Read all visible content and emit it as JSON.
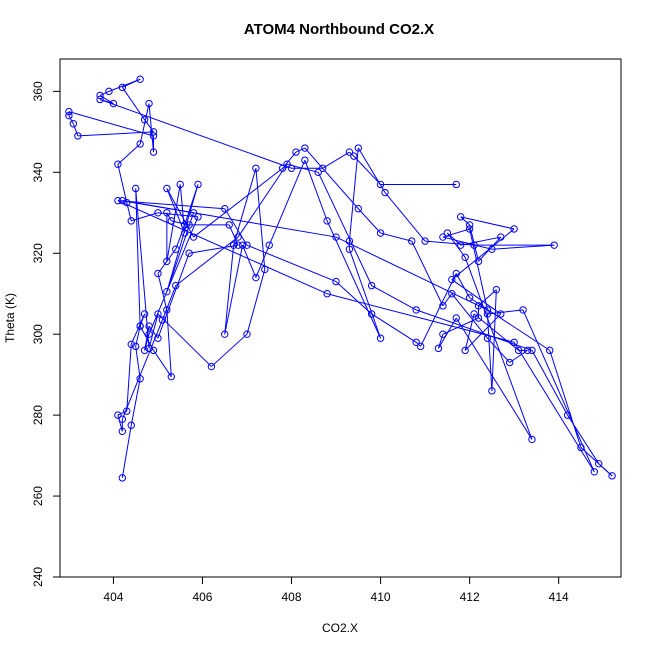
{
  "chart_data": {
    "type": "line",
    "title": "ATOM4 Northbound CO2.X",
    "xlabel": "CO2.X",
    "ylabel": "Theta (K)",
    "xlim": [
      402.8,
      415.4
    ],
    "ylim": [
      240,
      368
    ],
    "xticks": [
      404,
      406,
      408,
      410,
      412,
      414
    ],
    "yticks": [
      240,
      260,
      280,
      300,
      320,
      340,
      360
    ],
    "colors": {
      "series": "#0000ff",
      "axis": "#000000"
    },
    "series": [
      {
        "name": "",
        "marker": "open-circle",
        "points": [
          [
            404.2,
            264.5
          ],
          [
            404.4,
            277.5
          ],
          [
            404.6,
            289.0
          ],
          [
            404.5,
            297.0
          ],
          [
            404.6,
            302.0
          ],
          [
            404.9,
            296.0
          ],
          [
            405.3,
            289.5
          ],
          [
            405.2,
            306.0
          ],
          [
            405.0,
            315.0
          ],
          [
            405.4,
            321.0
          ],
          [
            405.6,
            327.0
          ],
          [
            405.9,
            337.0
          ],
          [
            405.2,
            310.5
          ],
          [
            405.8,
            330.0
          ],
          [
            404.2,
            333.0
          ],
          [
            409.0,
            324.0
          ],
          [
            412.4,
            306.0
          ],
          [
            412.0,
            326.0
          ],
          [
            411.4,
            324.0
          ],
          [
            412.5,
            321.0
          ],
          [
            413.9,
            322.0
          ],
          [
            412.1,
            322.0
          ],
          [
            411.0,
            323.0
          ],
          [
            410.1,
            335.0
          ],
          [
            409.5,
            346.0
          ],
          [
            409.3,
            323.0
          ],
          [
            409.3,
            321.0
          ],
          [
            410.0,
            299.0
          ],
          [
            408.8,
            328.0
          ],
          [
            408.3,
            343.0
          ],
          [
            407.5,
            322.0
          ],
          [
            407.2,
            314.0
          ],
          [
            406.9,
            322.0
          ],
          [
            406.5,
            300.0
          ],
          [
            406.7,
            322.0
          ],
          [
            407.2,
            341.0
          ],
          [
            407.4,
            316.0
          ],
          [
            407.0,
            300.0
          ],
          [
            406.2,
            292.0
          ],
          [
            405.0,
            305.0
          ],
          [
            404.8,
            296.5
          ],
          [
            404.5,
            336.0
          ],
          [
            404.6,
            302.0
          ],
          [
            404.7,
            305.0
          ],
          [
            404.4,
            297.5
          ],
          [
            404.3,
            281.0
          ],
          [
            404.1,
            280.0
          ],
          [
            404.2,
            276.0
          ],
          [
            404.2,
            279.0
          ],
          [
            405.1,
            303.5
          ],
          [
            405.4,
            312.0
          ],
          [
            406.8,
            324.0
          ],
          [
            407.9,
            342.0
          ],
          [
            408.6,
            340.0
          ],
          [
            409.8,
            312.0
          ],
          [
            410.8,
            306.0
          ],
          [
            413.4,
            296.0
          ],
          [
            414.2,
            280.0
          ],
          [
            414.9,
            268.0
          ],
          [
            415.2,
            265.0
          ],
          [
            414.5,
            272.0
          ],
          [
            413.8,
            296.0
          ],
          [
            412.0,
            309.0
          ],
          [
            411.7,
            315.0
          ],
          [
            410.9,
            297.0
          ],
          [
            410.8,
            298.0
          ],
          [
            409.8,
            305.0
          ],
          [
            409.0,
            313.0
          ],
          [
            407.0,
            322.0
          ],
          [
            406.5,
            331.0
          ],
          [
            404.1,
            333.0
          ],
          [
            408.8,
            310.0
          ],
          [
            413.0,
            298.0
          ],
          [
            414.8,
            266.0
          ],
          [
            413.2,
            306.0
          ],
          [
            412.4,
            305.0
          ],
          [
            412.5,
            286.0
          ],
          [
            412.6,
            311.0
          ],
          [
            412.2,
            307.0
          ],
          [
            412.2,
            304.0
          ],
          [
            411.4,
            300.0
          ],
          [
            411.3,
            296.5
          ],
          [
            411.7,
            304.0
          ],
          [
            413.4,
            274.0
          ],
          [
            411.9,
            319.0
          ],
          [
            411.5,
            325.0
          ],
          [
            411.8,
            322.0
          ],
          [
            412.7,
            324.0
          ],
          [
            412.2,
            318.0
          ],
          [
            412.0,
            327.0
          ],
          [
            411.8,
            329.0
          ],
          [
            413.0,
            326.0
          ],
          [
            411.6,
            313.5
          ],
          [
            412.7,
            305.0
          ],
          [
            411.9,
            296.0
          ],
          [
            412.1,
            305.0
          ],
          [
            413.1,
            296.0
          ],
          [
            413.3,
            296.0
          ],
          [
            412.9,
            293.0
          ],
          [
            412.4,
            299.0
          ],
          [
            411.6,
            310.0
          ],
          [
            411.4,
            307.0
          ],
          [
            410.7,
            323.0
          ],
          [
            410.0,
            325.0
          ],
          [
            409.5,
            331.0
          ],
          [
            408.3,
            346.0
          ],
          [
            408.1,
            345.0
          ],
          [
            407.8,
            341.0
          ],
          [
            405.8,
            324.0
          ],
          [
            405.2,
            336.0
          ],
          [
            405.6,
            325.0
          ],
          [
            405.5,
            337.0
          ],
          [
            405.2,
            318.0
          ],
          [
            405.2,
            330.0
          ],
          [
            405.3,
            328.0
          ],
          [
            405.7,
            327.0
          ],
          [
            406.6,
            327.0
          ],
          [
            406.8,
            322.0
          ],
          [
            405.7,
            320.0
          ],
          [
            405.0,
            299.0
          ],
          [
            404.8,
            302.0
          ],
          [
            404.7,
            296.0
          ],
          [
            404.8,
            300.0
          ],
          [
            405.9,
            329.0
          ],
          [
            405.0,
            330.0
          ],
          [
            404.4,
            328.0
          ],
          [
            404.3,
            332.5
          ],
          [
            404.1,
            342.0
          ],
          [
            404.6,
            347.0
          ],
          [
            404.8,
            357.0
          ],
          [
            404.9,
            345.0
          ],
          [
            404.9,
            349.0
          ],
          [
            403.0,
            355.0
          ],
          [
            403.0,
            354.0
          ],
          [
            403.1,
            352.0
          ],
          [
            403.2,
            349.0
          ],
          [
            404.9,
            350.0
          ],
          [
            404.7,
            353.0
          ],
          [
            404.2,
            361.0
          ],
          [
            404.6,
            363.0
          ],
          [
            403.9,
            360.0
          ],
          [
            403.7,
            359.0
          ],
          [
            404.0,
            357.0
          ],
          [
            403.7,
            358.0
          ],
          [
            408.0,
            341.0
          ],
          [
            408.7,
            341.0
          ],
          [
            409.3,
            345.0
          ],
          [
            409.4,
            344.0
          ],
          [
            410.0,
            337.0
          ],
          [
            411.7,
            337.0
          ]
        ]
      }
    ]
  }
}
